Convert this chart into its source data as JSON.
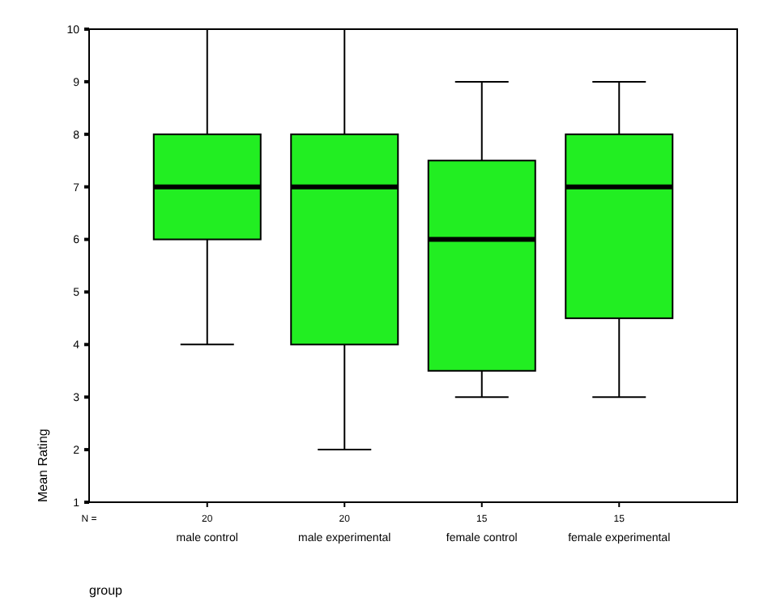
{
  "chart_data": {
    "type": "box",
    "xlabel": "group",
    "ylabel": "Mean Rating",
    "categories": [
      "male control",
      "male experimental",
      "female control",
      "female experimental"
    ],
    "color": "#22ee22",
    "boxes": [
      {
        "low": 4,
        "q1": 6,
        "median": 7,
        "q3": 8,
        "high": 10
      },
      {
        "low": 2,
        "q1": 4,
        "median": 7,
        "q3": 8,
        "high": 10
      },
      {
        "low": 3,
        "q1": 3.5,
        "median": 6,
        "q3": 7.5,
        "high": 9
      },
      {
        "low": 3,
        "q1": 4.5,
        "median": 7,
        "q3": 8,
        "high": 9
      }
    ],
    "ylim": [
      1,
      10
    ],
    "yticks": [
      1,
      2,
      3,
      4,
      5,
      6,
      7,
      8,
      9,
      10
    ],
    "grid": false,
    "annotations": [
      {
        "text": "N ="
      },
      {
        "text": "20",
        "x": "male control"
      },
      {
        "text": "20",
        "x": "male experimental"
      },
      {
        "text": "15",
        "x": "female control"
      },
      {
        "text": "15",
        "x": "female experimental"
      }
    ]
  }
}
